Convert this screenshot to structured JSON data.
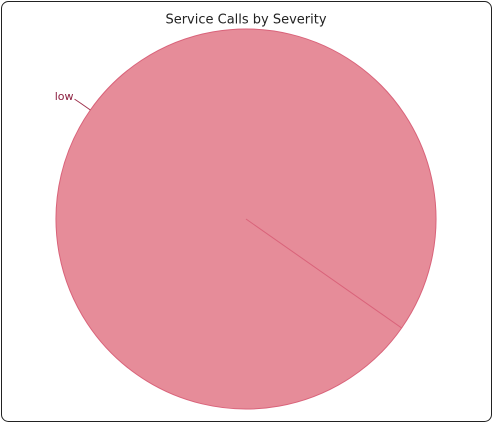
{
  "chart_data": {
    "type": "pie",
    "title": "Service Calls by Severity",
    "categories": [
      "low"
    ],
    "values": [
      100
    ],
    "colors": [
      "#e68c99"
    ]
  }
}
